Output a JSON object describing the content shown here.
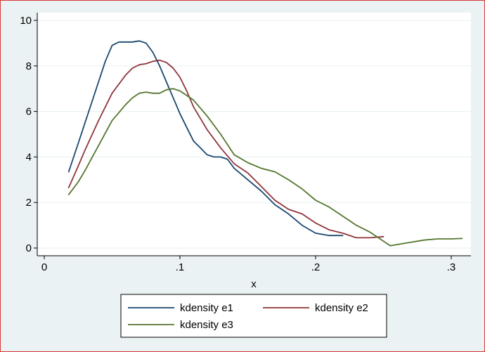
{
  "chart_data": {
    "type": "line",
    "xlabel": "x",
    "ylabel": "",
    "xlim": [
      -0.0,
      0.31
    ],
    "ylim": [
      -0.25,
      10.3
    ],
    "x_ticks": [
      0,
      0.1,
      0.2,
      0.3
    ],
    "x_tick_labels": [
      "0",
      ".1",
      ".2",
      ".3"
    ],
    "y_ticks": [
      0,
      2,
      4,
      6,
      8,
      10
    ],
    "y_tick_labels": [
      "0",
      "2",
      "4",
      "6",
      "8",
      "10"
    ],
    "grid": true,
    "legend_position": "bottom",
    "series": [
      {
        "name": "kdensity e1",
        "color": "#1a476f",
        "x": [
          0.018,
          0.025,
          0.03,
          0.035,
          0.04,
          0.045,
          0.05,
          0.055,
          0.06,
          0.065,
          0.07,
          0.075,
          0.08,
          0.085,
          0.09,
          0.095,
          0.1,
          0.105,
          0.11,
          0.115,
          0.12,
          0.125,
          0.13,
          0.135,
          0.14,
          0.15,
          0.16,
          0.17,
          0.18,
          0.19,
          0.2,
          0.21,
          0.22
        ],
        "y": [
          3.35,
          4.6,
          5.5,
          6.4,
          7.3,
          8.2,
          8.9,
          9.05,
          9.05,
          9.05,
          9.1,
          9.0,
          8.6,
          8.0,
          7.3,
          6.6,
          5.9,
          5.3,
          4.7,
          4.4,
          4.1,
          4.0,
          4.0,
          3.9,
          3.5,
          3.0,
          2.5,
          1.9,
          1.5,
          1.0,
          0.65,
          0.55,
          0.55
        ]
      },
      {
        "name": "kdensity e2",
        "color": "#90353b",
        "x": [
          0.018,
          0.025,
          0.03,
          0.04,
          0.05,
          0.06,
          0.065,
          0.07,
          0.075,
          0.08,
          0.085,
          0.09,
          0.095,
          0.1,
          0.105,
          0.11,
          0.115,
          0.12,
          0.13,
          0.14,
          0.15,
          0.16,
          0.17,
          0.18,
          0.19,
          0.2,
          0.21,
          0.22,
          0.23,
          0.24,
          0.25
        ],
        "y": [
          2.65,
          3.6,
          4.3,
          5.6,
          6.8,
          7.6,
          7.9,
          8.05,
          8.1,
          8.2,
          8.25,
          8.15,
          7.9,
          7.5,
          6.9,
          6.2,
          5.7,
          5.2,
          4.4,
          3.7,
          3.3,
          2.7,
          2.1,
          1.7,
          1.5,
          1.1,
          0.8,
          0.65,
          0.45,
          0.45,
          0.5
        ]
      },
      {
        "name": "kdensity e3",
        "color": "#55752f",
        "x": [
          0.018,
          0.025,
          0.03,
          0.04,
          0.05,
          0.06,
          0.065,
          0.07,
          0.075,
          0.08,
          0.085,
          0.09,
          0.095,
          0.1,
          0.11,
          0.12,
          0.13,
          0.14,
          0.15,
          0.16,
          0.17,
          0.18,
          0.19,
          0.2,
          0.21,
          0.22,
          0.23,
          0.24,
          0.25,
          0.255,
          0.26,
          0.27,
          0.28,
          0.29,
          0.3,
          0.308
        ],
        "y": [
          2.35,
          2.9,
          3.4,
          4.5,
          5.6,
          6.3,
          6.6,
          6.8,
          6.85,
          6.8,
          6.8,
          6.95,
          7.0,
          6.9,
          6.5,
          5.8,
          5.0,
          4.1,
          3.75,
          3.5,
          3.35,
          3.0,
          2.6,
          2.1,
          1.8,
          1.4,
          1.0,
          0.7,
          0.3,
          0.1,
          0.15,
          0.25,
          0.35,
          0.4,
          0.4,
          0.42
        ]
      }
    ]
  }
}
